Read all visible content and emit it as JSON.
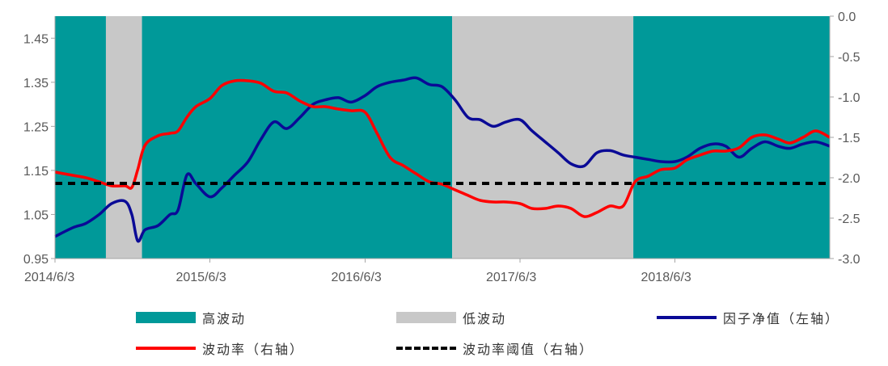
{
  "chart_data": {
    "type": "line",
    "title": "",
    "x_range": [
      "2014/6/3",
      "2019/6/3"
    ],
    "x_tick_labels": [
      "2014/6/3",
      "2015/6/3",
      "2016/6/3",
      "2017/6/3",
      "2018/6/3"
    ],
    "y_left": {
      "range": [
        0.95,
        1.5
      ],
      "ticks": [
        "0.95",
        "1.05",
        "1.15",
        "1.25",
        "1.35",
        "1.45"
      ]
    },
    "y_right": {
      "range": [
        -3.0,
        0.0
      ],
      "ticks": [
        "0.0",
        "-0.5",
        "-1.0",
        "-1.5",
        "-2.0",
        "-2.5",
        "-3.0"
      ]
    },
    "regimes": [
      {
        "label": "高波动",
        "start": "2014/6/3",
        "end": "2014/10/1"
      },
      {
        "label": "低波动",
        "start": "2014/10/1",
        "end": "2014/12/25"
      },
      {
        "label": "高波动",
        "start": "2014/12/25",
        "end": "2016/12/25"
      },
      {
        "label": "低波动",
        "start": "2016/12/25",
        "end": "2018/2/25"
      },
      {
        "label": "高波动",
        "start": "2018/2/25",
        "end": "2019/6/3"
      }
    ],
    "series": [
      {
        "name": "因子净值（左轴）",
        "axis": "left",
        "color": "#0a0a96",
        "x": [
          "2014/6/3",
          "2014/7/15",
          "2014/8/15",
          "2014/9/15",
          "2014/10/15",
          "2014/11/15",
          "2014/12/1",
          "2014/12/15",
          "2015/1/1",
          "2015/2/1",
          "2015/3/1",
          "2015/3/20",
          "2015/4/10",
          "2015/5/1",
          "2015/6/3",
          "2015/7/1",
          "2015/8/1",
          "2015/9/1",
          "2015/10/1",
          "2015/11/1",
          "2015/12/1",
          "2016/1/1",
          "2016/2/1",
          "2016/3/1",
          "2016/4/1",
          "2016/5/1",
          "2016/6/3",
          "2016/7/1",
          "2016/8/1",
          "2016/9/1",
          "2016/10/1",
          "2016/11/1",
          "2016/12/1",
          "2017/1/1",
          "2017/2/1",
          "2017/3/1",
          "2017/4/1",
          "2017/5/1",
          "2017/6/3",
          "2017/7/1",
          "2017/8/1",
          "2017/9/1",
          "2017/10/1",
          "2017/11/1",
          "2017/12/1",
          "2018/1/1",
          "2018/2/1",
          "2018/3/1",
          "2018/4/1",
          "2018/5/1",
          "2018/6/3",
          "2018/7/1",
          "2018/8/1",
          "2018/9/1",
          "2018/10/1",
          "2018/11/1",
          "2018/12/1",
          "2019/1/1",
          "2019/2/1",
          "2019/3/1",
          "2019/4/1",
          "2019/5/1",
          "2019/6/3"
        ],
        "values": [
          1.0,
          1.02,
          1.03,
          1.05,
          1.075,
          1.08,
          1.05,
          0.99,
          1.015,
          1.025,
          1.05,
          1.06,
          1.14,
          1.12,
          1.09,
          1.11,
          1.14,
          1.17,
          1.22,
          1.26,
          1.245,
          1.27,
          1.3,
          1.31,
          1.315,
          1.305,
          1.32,
          1.34,
          1.35,
          1.355,
          1.36,
          1.345,
          1.34,
          1.31,
          1.27,
          1.265,
          1.25,
          1.26,
          1.265,
          1.24,
          1.215,
          1.19,
          1.165,
          1.16,
          1.19,
          1.195,
          1.185,
          1.18,
          1.175,
          1.17,
          1.17,
          1.18,
          1.2,
          1.21,
          1.205,
          1.18,
          1.2,
          1.215,
          1.205,
          1.2,
          1.21,
          1.215,
          1.205
        ]
      },
      {
        "name": "波动率（右轴）",
        "axis": "right",
        "color": "#ff0000",
        "x": [
          "2014/6/3",
          "2014/7/15",
          "2014/8/15",
          "2014/9/15",
          "2014/10/15",
          "2014/11/15",
          "2014/12/1",
          "2014/12/15",
          "2015/1/1",
          "2015/2/1",
          "2015/3/1",
          "2015/3/20",
          "2015/4/10",
          "2015/5/1",
          "2015/6/3",
          "2015/7/1",
          "2015/8/1",
          "2015/9/1",
          "2015/10/1",
          "2015/11/1",
          "2015/12/1",
          "2016/1/1",
          "2016/2/1",
          "2016/3/1",
          "2016/4/1",
          "2016/5/1",
          "2016/6/3",
          "2016/7/1",
          "2016/8/1",
          "2016/9/1",
          "2016/10/1",
          "2016/11/1",
          "2016/12/1",
          "2017/1/1",
          "2017/2/1",
          "2017/3/1",
          "2017/4/1",
          "2017/5/1",
          "2017/6/3",
          "2017/7/1",
          "2017/8/1",
          "2017/9/1",
          "2017/10/1",
          "2017/11/1",
          "2017/12/1",
          "2018/1/1",
          "2018/2/1",
          "2018/3/1",
          "2018/4/1",
          "2018/5/1",
          "2018/6/3",
          "2018/7/1",
          "2018/8/1",
          "2018/9/1",
          "2018/10/1",
          "2018/11/1",
          "2018/12/1",
          "2019/1/1",
          "2019/2/1",
          "2019/3/1",
          "2019/4/1",
          "2019/5/1",
          "2019/6/3"
        ],
        "values": [
          -1.93,
          -1.97,
          -2.0,
          -2.05,
          -2.1,
          -2.1,
          -2.12,
          -1.9,
          -1.6,
          -1.48,
          -1.45,
          -1.42,
          -1.25,
          -1.12,
          -1.02,
          -0.86,
          -0.8,
          -0.8,
          -0.83,
          -0.93,
          -0.95,
          -1.05,
          -1.12,
          -1.12,
          -1.15,
          -1.17,
          -1.19,
          -1.45,
          -1.75,
          -1.85,
          -1.95,
          -2.05,
          -2.08,
          -2.15,
          -2.22,
          -2.28,
          -2.3,
          -2.3,
          -2.32,
          -2.38,
          -2.38,
          -2.35,
          -2.38,
          -2.48,
          -2.43,
          -2.35,
          -2.35,
          -2.05,
          -1.98,
          -1.9,
          -1.88,
          -1.78,
          -1.72,
          -1.67,
          -1.67,
          -1.63,
          -1.5,
          -1.47,
          -1.52,
          -1.57,
          -1.5,
          -1.42,
          -1.5
        ]
      },
      {
        "name": "波动率阈值（右轴）",
        "axis": "right",
        "color": "#000000",
        "style": "dashed",
        "x": [
          "2014/6/3",
          "2019/6/3"
        ],
        "values": [
          -2.07,
          -2.07
        ]
      }
    ],
    "legend": {
      "position": "bottom",
      "items": [
        {
          "label": "高波动",
          "kind": "box",
          "color": "#009999"
        },
        {
          "label": "低波动",
          "kind": "box",
          "color": "#c8c8c8"
        },
        {
          "label": "因子净值（左轴）",
          "kind": "line",
          "color": "#0a0a96"
        },
        {
          "label": "波动率（右轴）",
          "kind": "line",
          "color": "#ff0000"
        },
        {
          "label": "波动率阈值（右轴）",
          "kind": "dashed",
          "color": "#000000"
        }
      ]
    },
    "colors": {
      "high": "#009999",
      "low": "#c8c8c8",
      "nav": "#0a0a96",
      "vol": "#ff0000",
      "threshold": "#000000"
    }
  }
}
